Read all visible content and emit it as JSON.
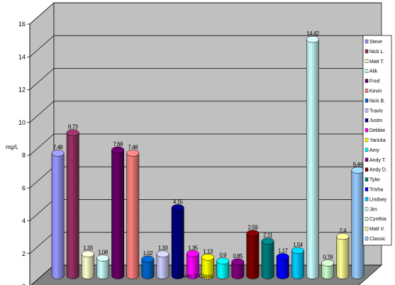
{
  "chart_data": {
    "type": "bar",
    "ylabel": "mg/L",
    "xlabel": "Chem 3 Class",
    "ylim": [
      0,
      16
    ],
    "yticks": [
      0,
      2,
      4,
      6,
      8,
      10,
      12,
      14,
      16
    ],
    "grid": true,
    "legend_position": "right",
    "series": [
      {
        "name": "Steve",
        "value": 7.48,
        "label": "7.48",
        "color": "#9999ff"
      },
      {
        "name": "Nick L.",
        "value": 8.73,
        "label": "8.73",
        "color": "#993366"
      },
      {
        "name": "Matt T.",
        "value": 1.33,
        "label": "1.33",
        "color": "#ffffcc"
      },
      {
        "name": "Alik",
        "value": 1.08,
        "label": "1.08",
        "color": "#ccffff"
      },
      {
        "name": "Fred",
        "value": 7.68,
        "label": "7.68",
        "color": "#660066"
      },
      {
        "name": "Kevin",
        "value": 7.48,
        "label": "7.48",
        "color": "#ff8080"
      },
      {
        "name": "Nick B.",
        "value": 1.02,
        "label": "1.02",
        "color": "#0066cc"
      },
      {
        "name": "Travis",
        "value": 1.33,
        "label": "1.33",
        "color": "#ccccff"
      },
      {
        "name": "Justin",
        "value": 4.15,
        "label": "4.15",
        "color": "#000080"
      },
      {
        "name": "Debbie",
        "value": 1.35,
        "label": "1.35",
        "color": "#ff00ff"
      },
      {
        "name": "Yaricka",
        "value": 1.13,
        "label": "1.13",
        "color": "#ffff00"
      },
      {
        "name": "Amy",
        "value": 0.9,
        "label": "0.9",
        "color": "#00ffff"
      },
      {
        "name": "Andy T.",
        "value": 0.85,
        "label": "0.85",
        "color": "#800080"
      },
      {
        "name": "Andy D.",
        "value": 2.59,
        "label": "2.59",
        "color": "#800000"
      },
      {
        "name": "Tyler",
        "value": 2.11,
        "label": "2.11",
        "color": "#008080"
      },
      {
        "name": "Trisha",
        "value": 1.17,
        "label": "1.17",
        "color": "#0000ff"
      },
      {
        "name": "Lindsey",
        "value": 1.54,
        "label": "1.54",
        "color": "#00ccff"
      },
      {
        "name": "Jim",
        "value": 14.42,
        "label": "14.42",
        "color": "#ccffff"
      },
      {
        "name": "Cynthia",
        "value": 0.78,
        "label": "0.78",
        "color": "#ccffcc"
      },
      {
        "name": "Matt V.",
        "value": 2.4,
        "label": "2.4",
        "color": "#ffff99"
      },
      {
        "name": "Classic",
        "value": 6.44,
        "label": "6.44",
        "color": "#99ccff"
      }
    ]
  }
}
